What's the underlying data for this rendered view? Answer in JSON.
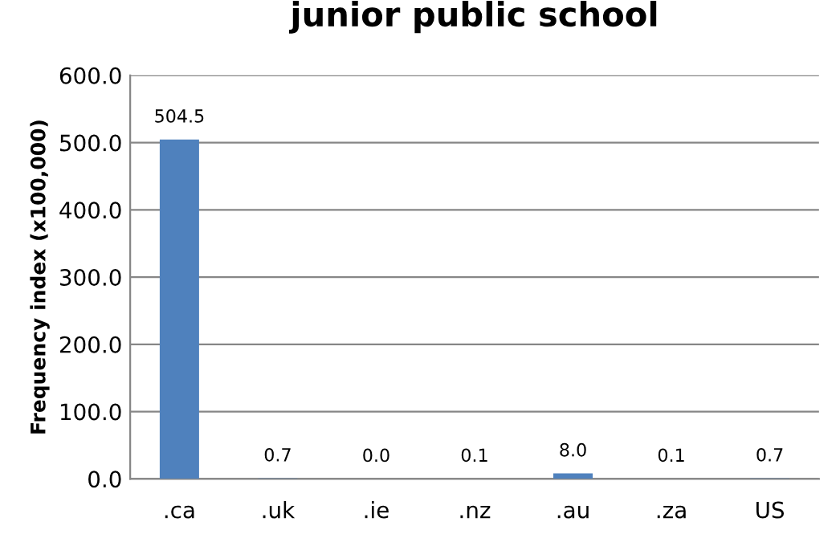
{
  "chart_data": {
    "type": "bar",
    "title": "junior public school",
    "ylabel": "Frequency index (x100,000)",
    "categories": [
      ".ca",
      ".uk",
      ".ie",
      ".nz",
      ".au",
      ".za",
      "US"
    ],
    "values": [
      504.5,
      0.7,
      0.0,
      0.1,
      8.0,
      0.1,
      0.7
    ],
    "value_labels": [
      "504.5",
      "0.7",
      "0.0",
      "0.1",
      "8.0",
      "0.1",
      "0.7"
    ],
    "color": "#4f81bd",
    "ylim": [
      0,
      600
    ],
    "yticks": [
      {
        "value": 0,
        "label": "0.0"
      },
      {
        "value": 100,
        "label": "100.0"
      },
      {
        "value": 200,
        "label": "200.0"
      },
      {
        "value": 300,
        "label": "300.0"
      },
      {
        "value": 400,
        "label": "400.0"
      },
      {
        "value": 500,
        "label": "500.0"
      },
      {
        "value": 600,
        "label": "600.0"
      }
    ],
    "grid": "y",
    "legend": false
  }
}
